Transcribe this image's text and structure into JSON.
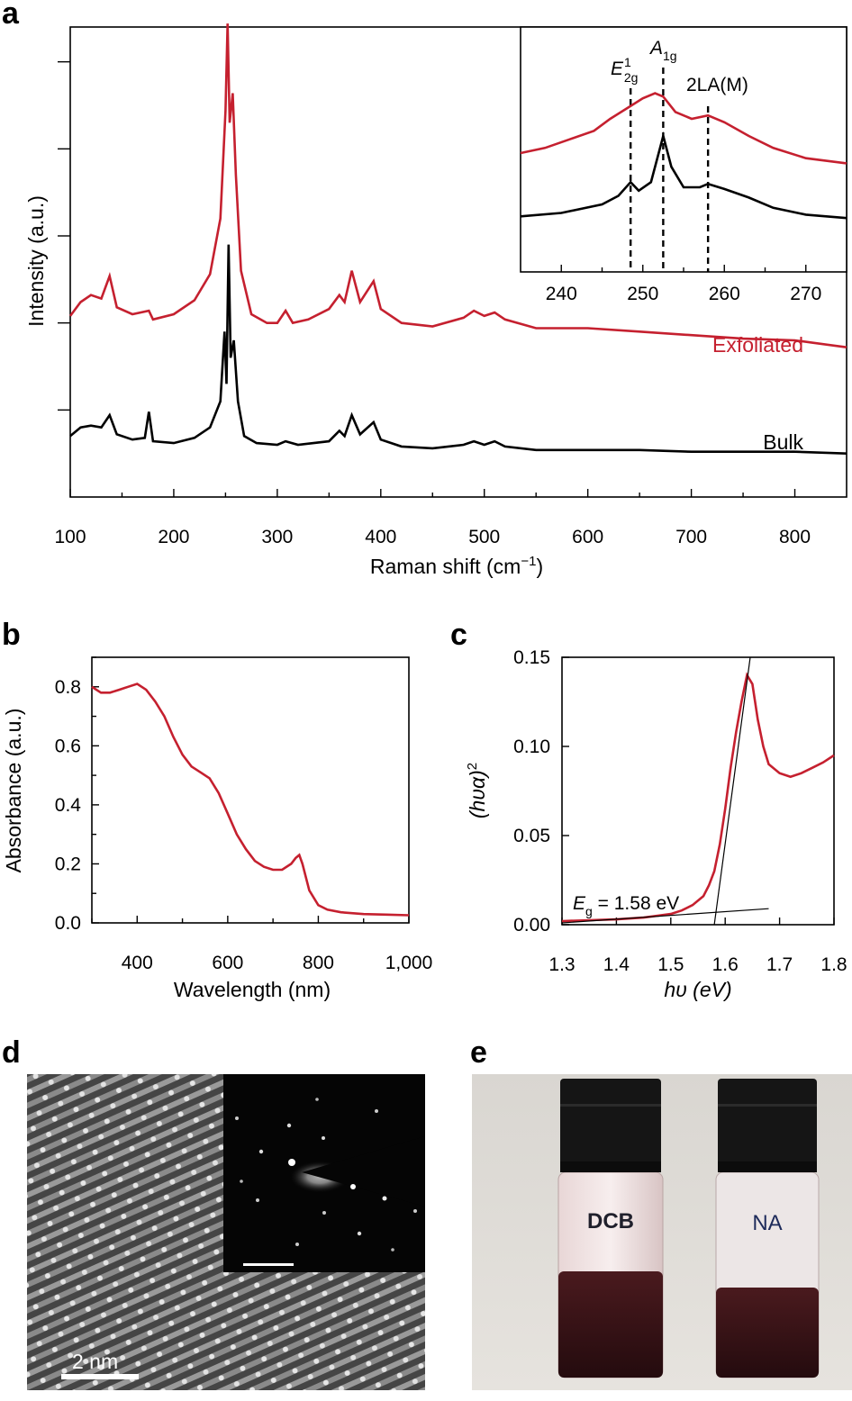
{
  "panels": {
    "a": "a",
    "b": "b",
    "c": "c",
    "d": "d",
    "e": "e"
  },
  "colors": {
    "red": "#c5202f",
    "black": "#000000"
  },
  "chart_data": [
    {
      "id": "a",
      "type": "line",
      "xlabel": "Raman shift (cm",
      "xlabel_sup": "−1",
      "xlabel_close": ")",
      "ylabel": "Intensity (a.u.)",
      "xlim": [
        100,
        850
      ],
      "ylim": [
        0,
        2.7
      ],
      "xticks": [
        100,
        200,
        300,
        400,
        500,
        600,
        700,
        800
      ],
      "yticks_unlabeled": [
        0.5,
        1.0,
        1.5,
        2.0,
        2.5
      ],
      "series": [
        {
          "name": "Exfoliated",
          "color": "#c5202f",
          "baseline": 1.0,
          "x": [
            100,
            110,
            120,
            130,
            138,
            145,
            160,
            176,
            180,
            200,
            220,
            235,
            245,
            250,
            252,
            254,
            257,
            260,
            265,
            275,
            290,
            300,
            308,
            315,
            330,
            350,
            360,
            365,
            372,
            380,
            393,
            400,
            420,
            450,
            480,
            490,
            500,
            510,
            520,
            550,
            600,
            650,
            700,
            750,
            800,
            850
          ],
          "y": [
            1.04,
            1.12,
            1.16,
            1.14,
            1.27,
            1.09,
            1.05,
            1.07,
            1.02,
            1.05,
            1.13,
            1.28,
            1.6,
            2.22,
            2.72,
            2.15,
            2.32,
            1.85,
            1.3,
            1.05,
            1.0,
            1.0,
            1.07,
            1.0,
            1.02,
            1.08,
            1.16,
            1.12,
            1.3,
            1.12,
            1.24,
            1.08,
            1.0,
            0.98,
            1.03,
            1.07,
            1.04,
            1.06,
            1.02,
            0.97,
            0.97,
            0.95,
            0.93,
            0.91,
            0.9,
            0.86
          ]
        },
        {
          "name": "Bulk",
          "color": "#000000",
          "baseline": 0.3,
          "x": [
            100,
            110,
            120,
            130,
            138,
            145,
            160,
            172,
            176,
            180,
            200,
            220,
            235,
            245,
            249,
            251,
            253,
            255,
            258,
            262,
            268,
            280,
            300,
            308,
            320,
            350,
            360,
            365,
            372,
            380,
            393,
            400,
            420,
            450,
            480,
            490,
            500,
            510,
            520,
            550,
            600,
            650,
            700,
            750,
            800,
            850
          ],
          "y": [
            0.35,
            0.4,
            0.41,
            0.4,
            0.47,
            0.36,
            0.33,
            0.34,
            0.49,
            0.32,
            0.31,
            0.34,
            0.4,
            0.55,
            0.95,
            0.65,
            1.45,
            0.8,
            0.9,
            0.55,
            0.35,
            0.31,
            0.3,
            0.32,
            0.3,
            0.32,
            0.38,
            0.35,
            0.47,
            0.36,
            0.43,
            0.33,
            0.29,
            0.28,
            0.3,
            0.32,
            0.3,
            0.32,
            0.29,
            0.27,
            0.27,
            0.27,
            0.26,
            0.26,
            0.26,
            0.25
          ]
        }
      ],
      "labels": {
        "exfoliated": "Exfoliated",
        "bulk": "Bulk"
      }
    },
    {
      "id": "a-inset",
      "type": "line",
      "xlim": [
        235,
        275
      ],
      "xticks": [
        240,
        250,
        260,
        270
      ],
      "ylim": [
        0,
        1
      ],
      "series": [
        {
          "name": "Exfoliated",
          "color": "#c5202f",
          "x": [
            235,
            238,
            241,
            244,
            246,
            248,
            250,
            251.5,
            252.5,
            254,
            256,
            258,
            260,
            263,
            266,
            270,
            275
          ],
          "y": [
            0.5,
            0.53,
            0.58,
            0.63,
            0.7,
            0.76,
            0.82,
            0.85,
            0.83,
            0.74,
            0.7,
            0.72,
            0.68,
            0.6,
            0.53,
            0.47,
            0.44
          ]
        },
        {
          "name": "Bulk",
          "color": "#000000",
          "x": [
            235,
            240,
            245,
            247,
            248.5,
            249.5,
            251,
            252.5,
            253.5,
            255,
            257,
            258,
            260,
            263,
            266,
            270,
            275
          ],
          "y": [
            0.13,
            0.15,
            0.2,
            0.25,
            0.33,
            0.28,
            0.33,
            0.6,
            0.42,
            0.3,
            0.3,
            0.32,
            0.29,
            0.24,
            0.18,
            0.14,
            0.12
          ]
        }
      ],
      "markers": [
        {
          "x": 248.5,
          "label": "E",
          "sup": "1",
          "sub": "2g"
        },
        {
          "x": 252.5,
          "label": "A",
          "sub": "1g"
        },
        {
          "x": 258,
          "label": "2LA(M)"
        }
      ]
    },
    {
      "id": "b",
      "type": "line",
      "xlabel": "Wavelength (nm)",
      "ylabel": "Absorbance (a.u.)",
      "xlim": [
        300,
        1000
      ],
      "ylim": [
        0,
        0.9
      ],
      "xticks": [
        400,
        600,
        800,
        1000
      ],
      "xtick_labels": [
        "400",
        "600",
        "800",
        "1,000"
      ],
      "yticks": [
        0,
        0.2,
        0.4,
        0.6,
        0.8
      ],
      "ytick_labels": [
        "0.0",
        "0.2",
        "0.4",
        "0.6",
        "0.8"
      ],
      "series": [
        {
          "name": "Absorbance",
          "color": "#c5202f",
          "x": [
            300,
            320,
            340,
            360,
            380,
            400,
            420,
            440,
            460,
            480,
            500,
            520,
            540,
            560,
            580,
            600,
            620,
            640,
            660,
            680,
            700,
            720,
            740,
            750,
            758,
            765,
            780,
            800,
            820,
            850,
            900,
            950,
            1000
          ],
          "y": [
            0.8,
            0.78,
            0.78,
            0.79,
            0.8,
            0.81,
            0.79,
            0.75,
            0.7,
            0.63,
            0.57,
            0.53,
            0.51,
            0.49,
            0.44,
            0.37,
            0.3,
            0.25,
            0.21,
            0.19,
            0.18,
            0.18,
            0.2,
            0.22,
            0.23,
            0.2,
            0.11,
            0.06,
            0.045,
            0.036,
            0.03,
            0.028,
            0.026
          ]
        }
      ]
    },
    {
      "id": "c",
      "type": "line",
      "xlabel": "hυ (eV)",
      "ylabel": "(hυα)",
      "ylabel_sup": "2",
      "xlim": [
        1.3,
        1.8
      ],
      "ylim": [
        0,
        0.15
      ],
      "xticks": [
        1.3,
        1.4,
        1.5,
        1.6,
        1.7,
        1.8
      ],
      "xtick_labels": [
        "1.3",
        "1.4",
        "1.5",
        "1.6",
        "1.7",
        "1.8"
      ],
      "yticks": [
        0,
        0.05,
        0.1,
        0.15
      ],
      "ytick_labels": [
        "0.00",
        "0.05",
        "0.10",
        "0.15"
      ],
      "annotation": {
        "prefix": "E",
        "sub": "g",
        "text": " = 1.58 eV"
      },
      "series": [
        {
          "name": "(hυα)^2",
          "color": "#c5202f",
          "x": [
            1.3,
            1.35,
            1.4,
            1.45,
            1.5,
            1.52,
            1.54,
            1.56,
            1.57,
            1.58,
            1.59,
            1.6,
            1.61,
            1.62,
            1.63,
            1.64,
            1.65,
            1.66,
            1.67,
            1.68,
            1.7,
            1.72,
            1.74,
            1.76,
            1.78,
            1.8
          ],
          "y": [
            0.002,
            0.0025,
            0.003,
            0.004,
            0.006,
            0.008,
            0.011,
            0.016,
            0.022,
            0.03,
            0.045,
            0.065,
            0.088,
            0.108,
            0.125,
            0.14,
            0.135,
            0.115,
            0.1,
            0.09,
            0.085,
            0.083,
            0.085,
            0.088,
            0.091,
            0.095
          ]
        },
        {
          "name": "tangent-steep",
          "color": "#000000",
          "x": [
            1.58,
            1.646
          ],
          "y": [
            0,
            0.15
          ]
        },
        {
          "name": "tangent-baseline",
          "color": "#000000",
          "x": [
            1.3,
            1.68
          ],
          "y": [
            0.001,
            0.009
          ]
        }
      ]
    }
  ],
  "images": {
    "d": {
      "scale_label": "2 nm"
    },
    "e": {
      "vial_left_label": "DCB",
      "vial_right_label": "NA"
    }
  }
}
